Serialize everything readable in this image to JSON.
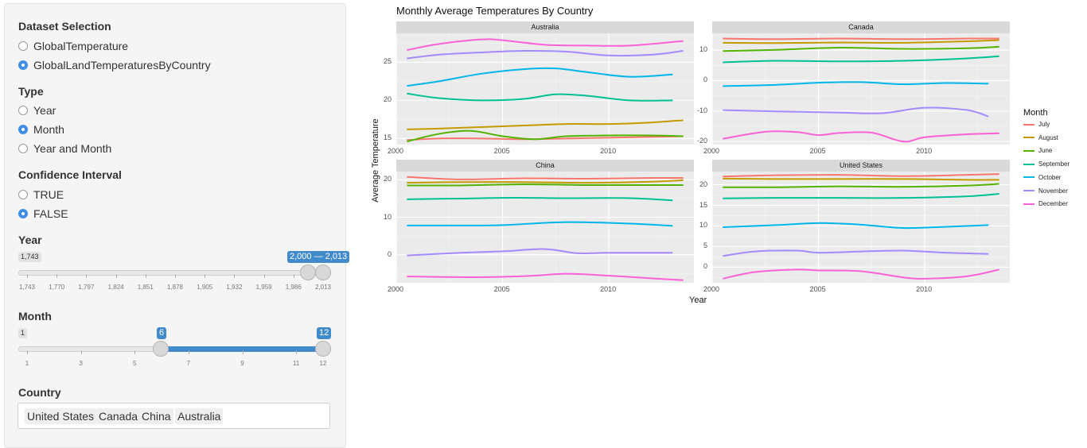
{
  "sidebar": {
    "dataset": {
      "heading": "Dataset Selection",
      "options": [
        "GlobalTemperature",
        "GlobalLandTemperaturesByCountry"
      ],
      "selected": 1
    },
    "type": {
      "heading": "Type",
      "options": [
        "Year",
        "Month",
        "Year and Month"
      ],
      "selected": 1
    },
    "confidence": {
      "heading": "Confidence Interval",
      "options": [
        "TRUE",
        "FALSE"
      ],
      "selected": 1
    },
    "year_slider": {
      "heading": "Year",
      "min_label": "1,743",
      "range_label": "2,000 — 2,013",
      "ticks": [
        "1,743",
        "1,770",
        "1,797",
        "1,824",
        "1,851",
        "1,878",
        "1,905",
        "1,932",
        "1,959",
        "1,986",
        "2,013"
      ],
      "min": 1743,
      "max": 2013,
      "low": 2000,
      "high": 2013
    },
    "month_slider": {
      "heading": "Month",
      "min_label": "1",
      "low_label": "6",
      "high_label": "12",
      "ticks": [
        "1",
        "3",
        "5",
        "7",
        "9",
        "11",
        "12"
      ],
      "min": 1,
      "max": 12,
      "low": 6,
      "high": 12
    },
    "country": {
      "heading": "Country",
      "chips": [
        "United States",
        "Canada",
        "China",
        "Australia"
      ]
    }
  },
  "chart_data": {
    "type": "line",
    "title": "Monthly Average Temperatures By Country",
    "xlabel": "Year",
    "ylabel": "Average Temperature",
    "legend": {
      "title": "Month",
      "position": "right"
    },
    "series_names": [
      "July",
      "August",
      "June",
      "September",
      "October",
      "November",
      "December"
    ],
    "colors": {
      "July": "#f8766d",
      "August": "#c49a00",
      "June": "#53b400",
      "September": "#00c094",
      "October": "#00b6eb",
      "November": "#a58aff",
      "December": "#fb61d7"
    },
    "x_ticks": [
      "2000",
      "2005",
      "2010"
    ],
    "x_range": [
      2000,
      2014
    ],
    "panels": [
      {
        "name": "Australia",
        "y_ticks": [
          "15",
          "20",
          "25"
        ],
        "ylim": [
          14.2,
          28.8
        ],
        "series": [
          {
            "name": "July",
            "x": [
              2000.5,
              2002,
              2004,
              2006,
              2008,
              2010,
              2012,
              2013.5
            ],
            "y": [
              14.8,
              15.0,
              15.0,
              14.9,
              15.0,
              15.1,
              15.2,
              15.3
            ]
          },
          {
            "name": "August",
            "x": [
              2000.5,
              2002,
              2004,
              2006,
              2008,
              2010,
              2012,
              2013.5
            ],
            "y": [
              16.2,
              16.3,
              16.5,
              16.7,
              16.9,
              16.9,
              17.1,
              17.4
            ]
          },
          {
            "name": "June",
            "x": [
              2000.5,
              2002,
              2003.5,
              2005,
              2006.5,
              2008,
              2010,
              2012,
              2013.5
            ],
            "y": [
              14.6,
              15.6,
              16.0,
              15.3,
              14.9,
              15.3,
              15.4,
              15.4,
              15.3
            ]
          },
          {
            "name": "September",
            "x": [
              2000.5,
              2002,
              2004,
              2006,
              2007.5,
              2009,
              2011,
              2013
            ],
            "y": [
              20.9,
              20.3,
              20.0,
              20.2,
              20.8,
              20.6,
              20.0,
              20.0
            ]
          },
          {
            "name": "October",
            "x": [
              2000.5,
              2002,
              2004,
              2006,
              2007.5,
              2009,
              2011,
              2013
            ],
            "y": [
              21.9,
              22.5,
              23.5,
              24.1,
              24.2,
              23.7,
              23.1,
              23.4
            ]
          },
          {
            "name": "November",
            "x": [
              2000.5,
              2002,
              2004,
              2006,
              2008,
              2010,
              2012,
              2013.5
            ],
            "y": [
              25.5,
              26.0,
              26.3,
              26.5,
              26.4,
              25.9,
              26.0,
              26.5
            ]
          },
          {
            "name": "December",
            "x": [
              2000.5,
              2002,
              2004,
              2005,
              2007,
              2009,
              2011,
              2013.5
            ],
            "y": [
              26.6,
              27.4,
              28.0,
              27.9,
              27.3,
              27.2,
              27.2,
              27.8
            ]
          }
        ]
      },
      {
        "name": "Canada",
        "y_ticks": [
          "-20",
          "-10",
          "0",
          "10"
        ],
        "ylim": [
          -21,
          15.5
        ],
        "series": [
          {
            "name": "July",
            "x": [
              2000.5,
              2003,
              2006,
              2009,
              2012,
              2013.5
            ],
            "y": [
              13.8,
              13.6,
              13.8,
              13.6,
              13.8,
              13.8
            ]
          },
          {
            "name": "August",
            "x": [
              2000.5,
              2003,
              2006,
              2009,
              2012,
              2013.5
            ],
            "y": [
              12.4,
              12.3,
              12.5,
              12.4,
              12.9,
              13.3
            ]
          },
          {
            "name": "June",
            "x": [
              2000.5,
              2003,
              2006,
              2009,
              2012,
              2013.5
            ],
            "y": [
              9.7,
              10.1,
              10.8,
              10.4,
              10.6,
              11.1
            ]
          },
          {
            "name": "September",
            "x": [
              2000.5,
              2003,
              2006,
              2009,
              2012,
              2013.5
            ],
            "y": [
              6.0,
              6.5,
              6.3,
              6.5,
              7.3,
              8.0
            ]
          },
          {
            "name": "October",
            "x": [
              2000.5,
              2003,
              2005,
              2007,
              2009,
              2011,
              2013
            ],
            "y": [
              -1.8,
              -1.4,
              -0.7,
              -0.5,
              -1.2,
              -0.8,
              -1.0
            ]
          },
          {
            "name": "November",
            "x": [
              2000.5,
              2003,
              2006,
              2008,
              2010,
              2012,
              2013
            ],
            "y": [
              -9.7,
              -10.1,
              -10.5,
              -10.7,
              -8.9,
              -9.7,
              -11.8
            ]
          },
          {
            "name": "December",
            "x": [
              2000.5,
              2002.5,
              2004,
              2005,
              2006,
              2007.5,
              2009,
              2010,
              2012,
              2013.5
            ],
            "y": [
              -19.1,
              -16.8,
              -16.9,
              -17.9,
              -17.2,
              -17.1,
              -20.0,
              -18.6,
              -17.6,
              -17.3
            ]
          }
        ]
      },
      {
        "name": "China",
        "y_ticks": [
          "0",
          "10",
          "20"
        ],
        "ylim": [
          -7.5,
          22.2
        ],
        "series": [
          {
            "name": "July",
            "x": [
              2000.5,
              2003,
              2006,
              2009,
              2012,
              2013.5
            ],
            "y": [
              20.8,
              20.1,
              20.4,
              20.3,
              20.5,
              20.5
            ]
          },
          {
            "name": "August",
            "x": [
              2000.5,
              2003,
              2006,
              2009,
              2012,
              2013.5
            ],
            "y": [
              19.2,
              19.4,
              19.4,
              19.2,
              19.5,
              19.9
            ]
          },
          {
            "name": "June",
            "x": [
              2000.5,
              2003,
              2006,
              2009,
              2012,
              2013.5
            ],
            "y": [
              18.5,
              18.5,
              18.8,
              18.6,
              18.6,
              18.6
            ]
          },
          {
            "name": "September",
            "x": [
              2000.5,
              2003,
              2005.5,
              2008,
              2011,
              2013
            ],
            "y": [
              14.8,
              15.0,
              15.2,
              15.1,
              15.1,
              14.5
            ]
          },
          {
            "name": "October",
            "x": [
              2000.5,
              2003,
              2005,
              2008,
              2011,
              2013
            ],
            "y": [
              7.8,
              7.8,
              7.9,
              8.7,
              8.3,
              7.7
            ]
          },
          {
            "name": "November",
            "x": [
              2000.5,
              2003,
              2005,
              2007,
              2008.5,
              2010,
              2013
            ],
            "y": [
              -0.2,
              0.5,
              0.9,
              1.5,
              0.4,
              0.5,
              0.5
            ]
          },
          {
            "name": "December",
            "x": [
              2000.5,
              2003,
              2005,
              2006.5,
              2008,
              2010,
              2012,
              2013.5
            ],
            "y": [
              -5.8,
              -6.0,
              -5.9,
              -5.6,
              -5.1,
              -5.6,
              -6.3,
              -6.8
            ]
          }
        ]
      },
      {
        "name": "United States",
        "y_ticks": [
          "0",
          "5",
          "10",
          "15",
          "20"
        ],
        "ylim": [
          -3.8,
          23.2
        ],
        "series": [
          {
            "name": "July",
            "x": [
              2000.5,
              2003,
              2006,
              2009,
              2012,
              2013.5
            ],
            "y": [
              22.0,
              22.3,
              22.4,
              22.1,
              22.4,
              22.6
            ]
          },
          {
            "name": "August",
            "x": [
              2000.5,
              2003,
              2006,
              2009,
              2012,
              2013.5
            ],
            "y": [
              21.5,
              21.4,
              21.4,
              21.4,
              21.2,
              21.2
            ]
          },
          {
            "name": "June",
            "x": [
              2000.5,
              2003,
              2006,
              2009,
              2012,
              2013.5
            ],
            "y": [
              19.4,
              19.4,
              19.6,
              19.5,
              19.8,
              20.2
            ]
          },
          {
            "name": "September",
            "x": [
              2000.5,
              2003,
              2006,
              2009,
              2012,
              2013.5
            ],
            "y": [
              16.7,
              16.8,
              16.8,
              16.8,
              17.2,
              17.8
            ]
          },
          {
            "name": "October",
            "x": [
              2000.5,
              2003,
              2005,
              2007,
              2009,
              2011,
              2013
            ],
            "y": [
              9.7,
              10.2,
              10.7,
              10.3,
              9.5,
              9.8,
              10.2
            ]
          },
          {
            "name": "November",
            "x": [
              2000.5,
              2002,
              2004,
              2005,
              2007,
              2009,
              2011,
              2013
            ],
            "y": [
              2.7,
              3.8,
              4.0,
              3.5,
              3.8,
              4.0,
              3.5,
              3.2
            ]
          },
          {
            "name": "December",
            "x": [
              2000.5,
              2002,
              2004,
              2005,
              2007,
              2009,
              2010,
              2012,
              2013.5
            ],
            "y": [
              -2.8,
              -1.2,
              -0.6,
              -0.8,
              -1.0,
              -2.5,
              -2.8,
              -2.2,
              -0.6
            ]
          }
        ]
      }
    ]
  }
}
